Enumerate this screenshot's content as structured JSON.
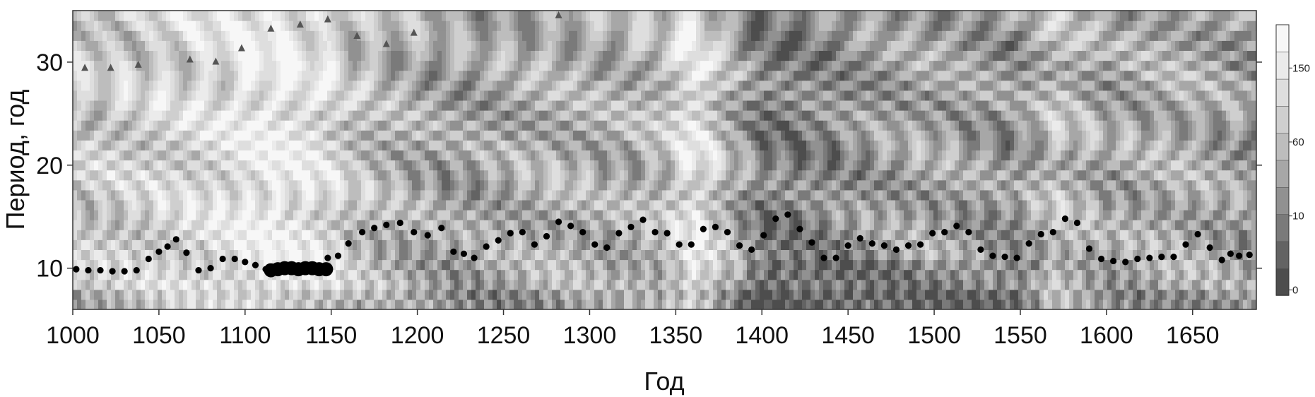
{
  "chart_data": {
    "type": "heatmap",
    "title": "",
    "xlabel": "Год",
    "ylabel": "Период, год",
    "xlim": [
      1000,
      1687
    ],
    "ylim": [
      6,
      35
    ],
    "x_ticks": [
      1000,
      1050,
      1100,
      1150,
      1200,
      1250,
      1300,
      1350,
      1400,
      1450,
      1500,
      1550,
      1600,
      1650
    ],
    "y_ticks": [
      10,
      20,
      30
    ],
    "colorbar": {
      "tick_labels": [
        "0",
        "10",
        "60",
        "150"
      ],
      "colors_low_to_high": [
        "#4d4d4d",
        "#636363",
        "#7a7a7a",
        "#919191",
        "#a7a7a7",
        "#bdbdbd",
        "#cfcfcf",
        "#dedede",
        "#ebebeb",
        "#f7f7f7"
      ]
    },
    "brightness_profile": [
      {
        "year": 1000,
        "level": 0.62
      },
      {
        "year": 1040,
        "level": 0.66
      },
      {
        "year": 1080,
        "level": 0.74
      },
      {
        "year": 1110,
        "level": 0.86
      },
      {
        "year": 1140,
        "level": 0.78
      },
      {
        "year": 1165,
        "level": 0.58
      },
      {
        "year": 1190,
        "level": 0.5
      },
      {
        "year": 1220,
        "level": 0.42
      },
      {
        "year": 1250,
        "level": 0.46
      },
      {
        "year": 1280,
        "level": 0.52
      },
      {
        "year": 1310,
        "level": 0.48
      },
      {
        "year": 1340,
        "level": 0.55
      },
      {
        "year": 1360,
        "level": 0.82
      },
      {
        "year": 1380,
        "level": 0.5
      },
      {
        "year": 1400,
        "level": 0.26
      },
      {
        "year": 1430,
        "level": 0.3
      },
      {
        "year": 1460,
        "level": 0.38
      },
      {
        "year": 1490,
        "level": 0.45
      },
      {
        "year": 1520,
        "level": 0.42
      },
      {
        "year": 1545,
        "level": 0.36
      },
      {
        "year": 1570,
        "level": 0.58
      },
      {
        "year": 1600,
        "level": 0.44
      },
      {
        "year": 1640,
        "level": 0.5
      },
      {
        "year": 1687,
        "level": 0.4
      }
    ],
    "series": [
      {
        "marker": "circle",
        "color": "#000000",
        "points": [
          {
            "x": 1002,
            "y": 9.9
          },
          {
            "x": 1009,
            "y": 9.8
          },
          {
            "x": 1016,
            "y": 9.8
          },
          {
            "x": 1023,
            "y": 9.7
          },
          {
            "x": 1030,
            "y": 9.7
          },
          {
            "x": 1037,
            "y": 9.8
          },
          {
            "x": 1044,
            "y": 10.9
          },
          {
            "x": 1050,
            "y": 11.6
          },
          {
            "x": 1055,
            "y": 12.1
          },
          {
            "x": 1060,
            "y": 12.8
          },
          {
            "x": 1066,
            "y": 11.5
          },
          {
            "x": 1073,
            "y": 9.8
          },
          {
            "x": 1080,
            "y": 10.0
          },
          {
            "x": 1087,
            "y": 10.9
          },
          {
            "x": 1094,
            "y": 10.9
          },
          {
            "x": 1100,
            "y": 10.6
          },
          {
            "x": 1106,
            "y": 10.3
          },
          {
            "x": 1112,
            "y": 9.9
          },
          {
            "x": 1118,
            "y": 9.8
          },
          {
            "x": 1124,
            "y": 9.7
          },
          {
            "x": 1130,
            "y": 9.8
          },
          {
            "x": 1136,
            "y": 9.9
          },
          {
            "x": 1142,
            "y": 10.0
          },
          {
            "x": 1148,
            "y": 11.0
          },
          {
            "x": 1154,
            "y": 11.2
          },
          {
            "x": 1160,
            "y": 12.4
          },
          {
            "x": 1168,
            "y": 13.5
          },
          {
            "x": 1175,
            "y": 13.9
          },
          {
            "x": 1182,
            "y": 14.2
          },
          {
            "x": 1190,
            "y": 14.4
          },
          {
            "x": 1198,
            "y": 13.5
          },
          {
            "x": 1206,
            "y": 13.2
          },
          {
            "x": 1214,
            "y": 13.9
          },
          {
            "x": 1221,
            "y": 11.6
          },
          {
            "x": 1227,
            "y": 11.4
          },
          {
            "x": 1233,
            "y": 11.0
          },
          {
            "x": 1240,
            "y": 12.1
          },
          {
            "x": 1247,
            "y": 12.7
          },
          {
            "x": 1254,
            "y": 13.4
          },
          {
            "x": 1261,
            "y": 13.5
          },
          {
            "x": 1268,
            "y": 12.3
          },
          {
            "x": 1275,
            "y": 13.1
          },
          {
            "x": 1282,
            "y": 14.5
          },
          {
            "x": 1289,
            "y": 14.1
          },
          {
            "x": 1296,
            "y": 13.5
          },
          {
            "x": 1303,
            "y": 12.3
          },
          {
            "x": 1310,
            "y": 12.0
          },
          {
            "x": 1317,
            "y": 13.4
          },
          {
            "x": 1324,
            "y": 14.0
          },
          {
            "x": 1331,
            "y": 14.7
          },
          {
            "x": 1338,
            "y": 13.5
          },
          {
            "x": 1345,
            "y": 13.4
          },
          {
            "x": 1352,
            "y": 12.3
          },
          {
            "x": 1359,
            "y": 12.3
          },
          {
            "x": 1366,
            "y": 13.8
          },
          {
            "x": 1373,
            "y": 14.0
          },
          {
            "x": 1380,
            "y": 13.5
          },
          {
            "x": 1387,
            "y": 12.2
          },
          {
            "x": 1394,
            "y": 11.8
          },
          {
            "x": 1401,
            "y": 13.2
          },
          {
            "x": 1408,
            "y": 14.8
          },
          {
            "x": 1415,
            "y": 15.2
          },
          {
            "x": 1422,
            "y": 13.8
          },
          {
            "x": 1429,
            "y": 12.5
          },
          {
            "x": 1436,
            "y": 11.0
          },
          {
            "x": 1443,
            "y": 11.0
          },
          {
            "x": 1450,
            "y": 12.2
          },
          {
            "x": 1457,
            "y": 12.9
          },
          {
            "x": 1464,
            "y": 12.4
          },
          {
            "x": 1471,
            "y": 12.2
          },
          {
            "x": 1478,
            "y": 11.8
          },
          {
            "x": 1485,
            "y": 12.2
          },
          {
            "x": 1492,
            "y": 12.3
          },
          {
            "x": 1499,
            "y": 13.4
          },
          {
            "x": 1506,
            "y": 13.5
          },
          {
            "x": 1513,
            "y": 14.1
          },
          {
            "x": 1520,
            "y": 13.5
          },
          {
            "x": 1527,
            "y": 11.8
          },
          {
            "x": 1534,
            "y": 11.2
          },
          {
            "x": 1541,
            "y": 11.1
          },
          {
            "x": 1548,
            "y": 11.0
          },
          {
            "x": 1555,
            "y": 12.4
          },
          {
            "x": 1562,
            "y": 13.3
          },
          {
            "x": 1569,
            "y": 13.5
          },
          {
            "x": 1576,
            "y": 14.8
          },
          {
            "x": 1583,
            "y": 14.4
          },
          {
            "x": 1590,
            "y": 11.9
          },
          {
            "x": 1597,
            "y": 10.9
          },
          {
            "x": 1604,
            "y": 10.7
          },
          {
            "x": 1611,
            "y": 10.6
          },
          {
            "x": 1618,
            "y": 10.9
          },
          {
            "x": 1625,
            "y": 11.0
          },
          {
            "x": 1632,
            "y": 11.1
          },
          {
            "x": 1639,
            "y": 11.1
          },
          {
            "x": 1646,
            "y": 12.3
          },
          {
            "x": 1653,
            "y": 13.3
          },
          {
            "x": 1660,
            "y": 12.0
          },
          {
            "x": 1667,
            "y": 10.8
          },
          {
            "x": 1672,
            "y": 11.4
          },
          {
            "x": 1677,
            "y": 11.2
          },
          {
            "x": 1683,
            "y": 11.3
          }
        ]
      },
      {
        "marker": "large-circle",
        "color": "#000000",
        "points": [
          {
            "x": 1115,
            "y": 9.8
          },
          {
            "x": 1119,
            "y": 9.9
          },
          {
            "x": 1123,
            "y": 10.0
          },
          {
            "x": 1127,
            "y": 10.0
          },
          {
            "x": 1131,
            "y": 9.9
          },
          {
            "x": 1135,
            "y": 10.0
          },
          {
            "x": 1139,
            "y": 10.0
          },
          {
            "x": 1143,
            "y": 9.9
          },
          {
            "x": 1147,
            "y": 9.9
          }
        ]
      },
      {
        "marker": "triangle",
        "color": "#555555",
        "points": [
          {
            "x": 1007,
            "y": 29.5
          },
          {
            "x": 1022,
            "y": 29.5
          },
          {
            "x": 1038,
            "y": 29.8
          },
          {
            "x": 1068,
            "y": 30.3
          },
          {
            "x": 1083,
            "y": 30.1
          },
          {
            "x": 1098,
            "y": 31.4
          },
          {
            "x": 1115,
            "y": 33.3
          },
          {
            "x": 1132,
            "y": 33.7
          },
          {
            "x": 1148,
            "y": 34.2
          },
          {
            "x": 1165,
            "y": 32.6
          },
          {
            "x": 1182,
            "y": 31.8
          },
          {
            "x": 1198,
            "y": 32.9
          },
          {
            "x": 1282,
            "y": 34.6
          }
        ]
      }
    ]
  }
}
